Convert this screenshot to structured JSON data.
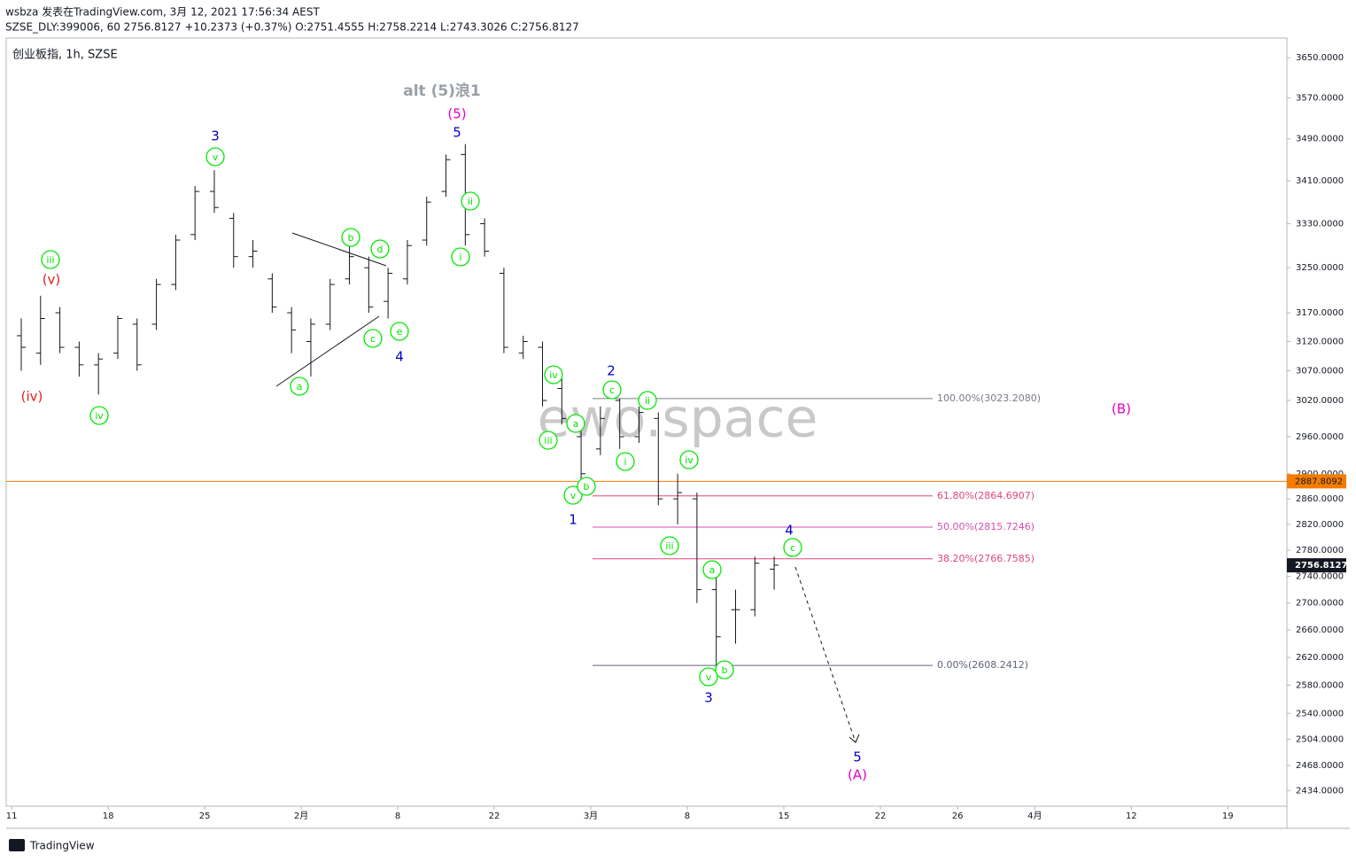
{
  "header": {
    "author_line": "wsbza 发表在TradingView.com, 3月 12, 2021 17:56:34 AEST",
    "symbol_line": "SZSE_DLY:399006, 60 2756.8127 +10.2373 (+0.37%) O:2751.4555 H:2758.2214 L:2743.3026 C:2756.8127"
  },
  "footer": {
    "brand": "TradingView"
  },
  "chart_data": {
    "type": "ohlc",
    "title": "创业板指, 1h, SZSE",
    "watermark": "ewo.space",
    "log_scale": true,
    "color": "#131722",
    "x": [
      0.5,
      1.5,
      2.5,
      3.5,
      4.5,
      5.5,
      6.5,
      7.5,
      8.5,
      9.5,
      10.5,
      11.5,
      12.5,
      13.5,
      14.5,
      15.5,
      16.5,
      17.5,
      18.5,
      19.5,
      20.5,
      21.5,
      22.5,
      23.5,
      24.5,
      25.5,
      26.5,
      27.5,
      28.5,
      29.5,
      30.5,
      31.5,
      32.5,
      33.5,
      34.5,
      35.5,
      36.5,
      37.5,
      38.5,
      39.5
    ],
    "ohlc": [
      [
        3130,
        3160,
        3070,
        3110
      ],
      [
        3100,
        3200,
        3080,
        3160
      ],
      [
        3170,
        3180,
        3100,
        3110
      ],
      [
        3110,
        3120,
        3060,
        3080
      ],
      [
        3080,
        3100,
        3030,
        3090
      ],
      [
        3100,
        3165,
        3090,
        3160
      ],
      [
        3150,
        3160,
        3070,
        3080
      ],
      [
        3150,
        3230,
        3140,
        3220
      ],
      [
        3220,
        3310,
        3210,
        3300
      ],
      [
        3310,
        3400,
        3300,
        3390
      ],
      [
        3390,
        3430,
        3350,
        3360
      ],
      [
        3340,
        3350,
        3250,
        3270
      ],
      [
        3270,
        3300,
        3250,
        3280
      ],
      [
        3230,
        3240,
        3170,
        3180
      ],
      [
        3170,
        3180,
        3100,
        3140
      ],
      [
        3120,
        3160,
        3060,
        3150
      ],
      [
        3150,
        3230,
        3140,
        3220
      ],
      [
        3230,
        3290,
        3220,
        3270
      ],
      [
        3250,
        3270,
        3170,
        3180
      ],
      [
        3190,
        3250,
        3160,
        3240
      ],
      [
        3230,
        3300,
        3220,
        3290
      ],
      [
        3300,
        3380,
        3290,
        3370
      ],
      [
        3390,
        3460,
        3380,
        3450
      ],
      [
        3460,
        3480,
        3290,
        3310
      ],
      [
        3330,
        3340,
        3270,
        3280
      ],
      [
        3240,
        3250,
        3100,
        3110
      ],
      [
        3100,
        3130,
        3090,
        3120
      ],
      [
        3110,
        3120,
        3010,
        3020
      ],
      [
        3040,
        3060,
        2980,
        2990
      ],
      [
        2960,
        2980,
        2875,
        2900
      ],
      [
        2940,
        3010,
        2930,
        2990
      ],
      [
        3020,
        3023,
        2940,
        2960
      ],
      [
        2960,
        3010,
        2950,
        3000
      ],
      [
        2990,
        3000,
        2850,
        2860
      ],
      [
        2860,
        2900,
        2820,
        2870
      ],
      [
        2860,
        2870,
        2700,
        2720
      ],
      [
        2720,
        2740,
        2608,
        2650
      ],
      [
        2690,
        2720,
        2640,
        2690
      ],
      [
        2690,
        2770,
        2680,
        2760
      ],
      [
        2751,
        2770,
        2720,
        2757
      ]
    ],
    "xlim": [
      -0.28,
      66.06
    ],
    "xticks": [
      {
        "value": 0,
        "label": "11"
      },
      {
        "value": 5,
        "label": "18"
      },
      {
        "value": 10,
        "label": "25"
      },
      {
        "value": 15,
        "label": "2月"
      },
      {
        "value": 20,
        "label": "8"
      },
      {
        "value": 25,
        "label": "22"
      },
      {
        "value": 30,
        "label": "3月"
      },
      {
        "value": 35,
        "label": "8"
      },
      {
        "value": 40,
        "label": "15"
      },
      {
        "value": 45,
        "label": "22"
      },
      {
        "value": 49,
        "label": "26"
      },
      {
        "value": 53,
        "label": "4月"
      },
      {
        "value": 58,
        "label": "12"
      },
      {
        "value": 63,
        "label": "19"
      }
    ],
    "ylim": [
      2413,
      3690
    ],
    "yticks": [
      {
        "value": 3650,
        "label": "3650.0000"
      },
      {
        "value": 3570,
        "label": "3570.0000"
      },
      {
        "value": 3490,
        "label": "3490.0000"
      },
      {
        "value": 3410,
        "label": "3410.0000"
      },
      {
        "value": 3330,
        "label": "3330.0000"
      },
      {
        "value": 3250,
        "label": "3250.0000"
      },
      {
        "value": 3170,
        "label": "3170.0000"
      },
      {
        "value": 3120,
        "label": "3120.0000"
      },
      {
        "value": 3070,
        "label": "3070.0000"
      },
      {
        "value": 3020,
        "label": "3020.0000"
      },
      {
        "value": 2960,
        "label": "2960.0000"
      },
      {
        "value": 2900,
        "label": "2900.0000"
      },
      {
        "value": 2860,
        "label": "2860.0000"
      },
      {
        "value": 2820,
        "label": "2820.0000"
      },
      {
        "value": 2780,
        "label": "2780.0000"
      },
      {
        "value": 2740,
        "label": "2740.0000"
      },
      {
        "value": 2700,
        "label": "2700.0000"
      },
      {
        "value": 2660,
        "label": "2660.0000"
      },
      {
        "value": 2620,
        "label": "2620.0000"
      },
      {
        "value": 2580,
        "label": "2580.0000"
      },
      {
        "value": 2540,
        "label": "2540.0000"
      },
      {
        "value": 2504,
        "label": "2504.0000"
      },
      {
        "value": 2468,
        "label": "2468.0000"
      },
      {
        "value": 2434,
        "label": "2434.0000"
      }
    ],
    "fib": [
      {
        "value": 3023.208,
        "label": "100.00%(3023.2080)",
        "color": "#787b86"
      },
      {
        "value": 2864.6907,
        "label": "61.80%(2864.6907)",
        "color": "#e0467a"
      },
      {
        "value": 2815.7246,
        "label": "50.00%(2815.7246)",
        "color": "#d24fb0"
      },
      {
        "value": 2766.7585,
        "label": "38.20%(2766.7585)",
        "color": "#e0467a"
      },
      {
        "value": 2608.2412,
        "label": "0.00%(2608.2412)",
        "color": "#5d6382"
      }
    ],
    "hline": {
      "value": 2887.8092,
      "label": "2887.8092",
      "color": "#f57c00"
    },
    "last_price": {
      "value": 2756.8127,
      "label": "2756.8127",
      "color": "#131722"
    },
    "annotations": [
      {
        "text": "iii",
        "color": "#00e600"
      },
      {
        "text": "v",
        "color": "#00e600"
      },
      {
        "text": "iv",
        "color": "#00e600"
      },
      {
        "text": "a",
        "color": "#00e600"
      },
      {
        "text": "b",
        "color": "#00e600"
      },
      {
        "text": "c",
        "color": "#00e600"
      },
      {
        "text": "d",
        "color": "#00e600"
      },
      {
        "text": "e",
        "color": "#00e600"
      },
      {
        "text": "ii",
        "color": "#00e600"
      },
      {
        "text": "i",
        "color": "#00e600"
      },
      {
        "text": "iv",
        "color": "#00e600"
      },
      {
        "text": "a",
        "color": "#00e600"
      },
      {
        "text": "iii",
        "color": "#00e600"
      },
      {
        "text": "v",
        "color": "#00e600"
      },
      {
        "text": "b",
        "color": "#00e600"
      },
      {
        "text": "c",
        "color": "#00e600"
      },
      {
        "text": "ii",
        "color": "#00e600"
      },
      {
        "text": "i",
        "color": "#00e600"
      },
      {
        "text": "iv",
        "color": "#00e600"
      },
      {
        "text": "iii",
        "color": "#00e600"
      },
      {
        "text": "a",
        "color": "#00e600"
      },
      {
        "text": "v",
        "color": "#00e600"
      },
      {
        "text": "b",
        "color": "#00e600"
      },
      {
        "text": "c",
        "color": "#00e600"
      },
      {
        "text": "3",
        "color": "#0000cc"
      },
      {
        "text": "4",
        "color": "#0000cc"
      },
      {
        "text": "5",
        "color": "#0000cc"
      },
      {
        "text": "2",
        "color": "#0000cc"
      },
      {
        "text": "1",
        "color": "#0000cc"
      },
      {
        "text": "3",
        "color": "#0000cc"
      },
      {
        "text": "4",
        "color": "#0000cc"
      },
      {
        "text": "5",
        "color": "#0000cc"
      },
      {
        "text": "(v)",
        "color": "#e02020"
      },
      {
        "text": "(iv)",
        "color": "#e02020"
      },
      {
        "text": "(5)",
        "color": "#e600c8"
      },
      {
        "text": "(B)",
        "color": "#e600c8"
      },
      {
        "text": "(A)",
        "color": "#e600c8"
      },
      {
        "text": "alt (5)浪1",
        "color": "#9aa0a8"
      }
    ]
  }
}
